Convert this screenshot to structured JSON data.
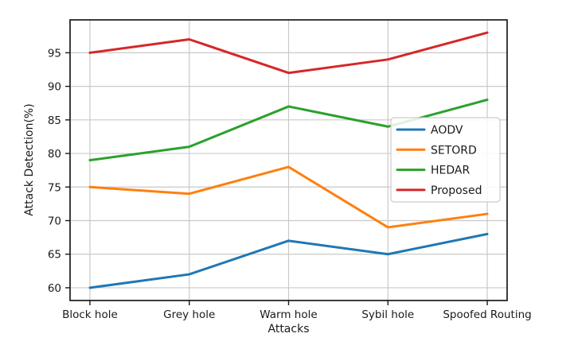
{
  "chart_data": {
    "type": "line",
    "title": "",
    "xlabel": "Attacks",
    "ylabel": "Attack Detection(%)",
    "categories": [
      "Block hole",
      "Grey hole",
      "Warm hole",
      "Sybil hole",
      "Spoofed Routing"
    ],
    "series": [
      {
        "name": "AODV",
        "color": "#1f77b4",
        "values": [
          60,
          62,
          67,
          65,
          68
        ]
      },
      {
        "name": "SETORD",
        "color": "#ff7f0e",
        "values": [
          75,
          74,
          78,
          69,
          71
        ]
      },
      {
        "name": "HEDAR",
        "color": "#2ca02c",
        "values": [
          79,
          81,
          87,
          84,
          88
        ]
      },
      {
        "name": "Proposed",
        "color": "#d62728",
        "values": [
          95,
          97,
          92,
          94,
          98
        ]
      }
    ],
    "yticks": [
      60,
      65,
      70,
      75,
      80,
      85,
      90,
      95
    ],
    "ylim": [
      58.1,
      99.9
    ],
    "grid": true,
    "legend_position": "center-right",
    "legend_entries": [
      "AODV",
      "SETORD",
      "HEDAR",
      "Proposed"
    ]
  }
}
